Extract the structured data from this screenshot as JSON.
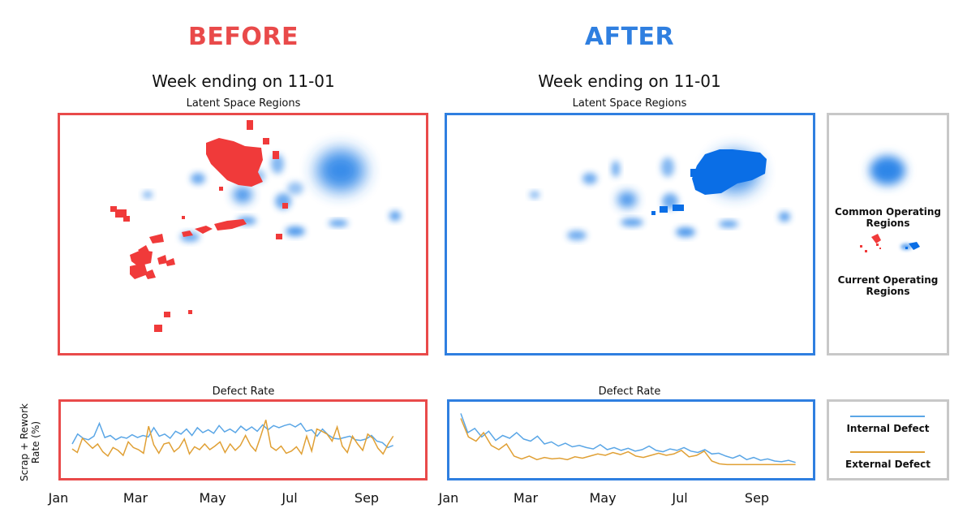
{
  "colors": {
    "before": "#e94a4a",
    "after": "#2f7fe0",
    "legend_border": "#c8c8c8",
    "blob": "#2f86e8",
    "current_before": "#f03a3a",
    "current_after": "#0a6ee6",
    "internal_line": "#5aa6e6",
    "external_line": "#e0a035"
  },
  "before": {
    "heading": "BEFORE",
    "week_label": "Week ending on 11-01",
    "latent_title": "Latent Space Regions",
    "defect_title": "Defect Rate"
  },
  "after": {
    "heading": "AFTER",
    "week_label": "Week ending on 11-01",
    "latent_title": "Latent Space Regions",
    "defect_title": "Defect Rate"
  },
  "legend": {
    "common_label": "Common Operating Regions",
    "current_label": "Current Operating Regions",
    "internal_label": "Internal Defect",
    "external_label": "External Defect",
    "common_icon": "blue-blob-icon",
    "current_icon": "scatter-regions-icon"
  },
  "ylabel_line1": "Scrap + Rework",
  "ylabel_line2": "Rate (%)",
  "months": [
    "Jan",
    "Mar",
    "May",
    "Jul",
    "Sep"
  ],
  "chart_data": [
    {
      "type": "line",
      "title": "Defect Rate",
      "ylabel": "Scrap + Rework Rate (%)",
      "x_ticks": [
        "Jan",
        "Mar",
        "May",
        "Jul",
        "Sep"
      ],
      "x_range": [
        0,
        41
      ],
      "series": [
        {
          "name": "Internal Defect",
          "values": [
            3.2,
            4.6,
            4.0,
            3.8,
            4.3,
            6.1,
            4.1,
            4.4,
            3.8,
            4.2,
            4.0,
            4.5,
            4.1,
            4.4,
            4.2,
            5.5,
            4.3,
            4.6,
            4.0,
            5.0,
            4.6,
            5.3,
            4.4,
            5.5,
            4.8,
            5.2,
            4.7,
            5.8,
            4.9,
            5.3,
            4.8,
            5.7,
            5.1,
            5.6,
            5.0,
            5.9,
            5.2,
            5.8,
            5.5,
            5.8,
            6.0,
            5.6,
            6.1,
            5.0,
            5.2,
            4.3,
            5.3,
            4.5,
            4.0,
            3.9,
            4.1,
            4.3,
            3.8,
            3.7,
            3.9,
            4.4,
            3.6,
            3.4,
            2.7,
            3.0
          ]
        },
        {
          "name": "External Defect",
          "values": [
            2.5,
            2.0,
            4.0,
            3.3,
            2.6,
            3.2,
            2.1,
            1.5,
            2.7,
            2.3,
            1.6,
            3.5,
            2.7,
            2.4,
            1.9,
            5.7,
            3.1,
            1.9,
            3.2,
            3.4,
            2.1,
            2.7,
            3.9,
            1.8,
            2.8,
            2.4,
            3.2,
            2.4,
            2.9,
            3.5,
            2.0,
            3.2,
            2.3,
            3.0,
            4.4,
            3.0,
            2.2,
            4.3,
            6.6,
            2.8,
            2.3,
            2.9,
            1.9,
            2.2,
            2.8,
            1.8,
            4.3,
            2.2,
            5.3,
            5.0,
            4.6,
            3.6,
            5.6,
            2.9,
            2.0,
            4.3,
            3.2,
            2.3,
            4.6,
            4.0,
            2.6,
            1.8,
            3.2,
            4.3
          ]
        }
      ],
      "ylim": [
        0,
        8
      ]
    },
    {
      "type": "line",
      "title": "Defect Rate",
      "x_ticks": [
        "Jan",
        "Mar",
        "May",
        "Jul",
        "Sep"
      ],
      "x_range": [
        0,
        48
      ],
      "series": [
        {
          "name": "Internal Defect",
          "values": [
            7.5,
            4.8,
            5.4,
            4.2,
            5.0,
            3.7,
            4.4,
            4.0,
            4.8,
            3.9,
            3.6,
            4.3,
            3.2,
            3.5,
            2.9,
            3.3,
            2.8,
            3.0,
            2.7,
            2.5,
            3.1,
            2.4,
            2.7,
            2.3,
            2.6,
            2.2,
            2.4,
            2.9,
            2.3,
            2.1,
            2.5,
            2.3,
            2.7,
            2.2,
            2.0,
            2.4,
            1.8,
            1.9,
            1.5,
            1.2,
            1.6,
            1.0,
            1.3,
            0.9,
            1.1,
            0.8,
            0.7,
            0.9,
            0.6
          ]
        },
        {
          "name": "External Defect",
          "values": [
            6.8,
            4.2,
            3.6,
            4.8,
            3.0,
            2.4,
            3.2,
            1.5,
            1.1,
            1.5,
            1.0,
            1.3,
            1.1,
            1.2,
            1.0,
            1.4,
            1.2,
            1.5,
            1.8,
            1.6,
            2.0,
            1.7,
            2.1,
            1.5,
            1.3,
            1.6,
            1.9,
            1.6,
            1.8,
            2.3,
            1.4,
            1.6,
            2.2,
            0.8,
            0.4,
            0.3,
            0.3,
            0.3,
            0.3,
            0.3,
            0.3,
            0.3,
            0.3,
            0.3,
            0.3
          ]
        }
      ],
      "ylim": [
        0,
        8
      ]
    }
  ]
}
